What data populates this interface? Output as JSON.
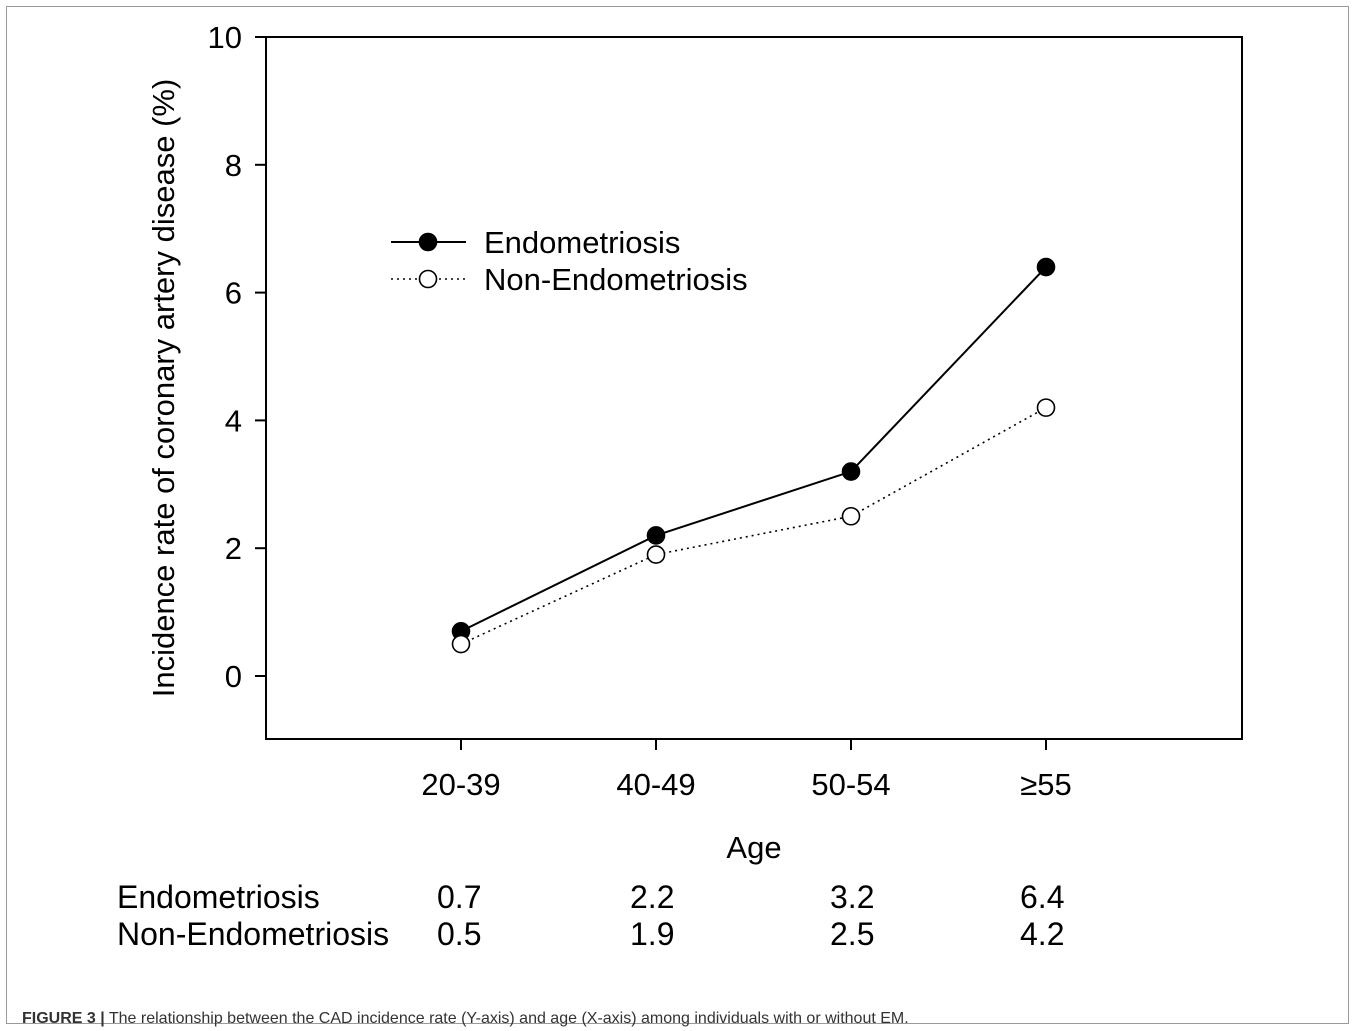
{
  "chart_data": {
    "type": "line",
    "categories": [
      "20-39",
      "40-49",
      "50-54",
      "≥55"
    ],
    "series": [
      {
        "name": "Endometriosis",
        "values": [
          0.7,
          2.2,
          3.2,
          6.4
        ],
        "marker": "filled-circle",
        "line": "solid",
        "color": "#000000"
      },
      {
        "name": "Non-Endometriosis",
        "values": [
          0.5,
          1.9,
          2.5,
          4.2
        ],
        "marker": "open-circle",
        "line": "dotted",
        "color": "#000000"
      }
    ],
    "xlabel": "Age",
    "ylabel": "Incidence rate of coronary artery disease (%)",
    "ylim": [
      -1,
      10
    ],
    "yticks": [
      0,
      2,
      4,
      6,
      8,
      10
    ],
    "grid": false,
    "legend": "upper-left-inside"
  },
  "table": {
    "rows": [
      {
        "label": "Endometriosis",
        "values": [
          "0.7",
          "2.2",
          "3.2",
          "6.4"
        ]
      },
      {
        "label": "Non-Endometriosis",
        "values": [
          "0.5",
          "1.9",
          "2.5",
          "4.2"
        ]
      }
    ]
  },
  "caption": {
    "label": "FIGURE 3 |",
    "text": " The relationship between the CAD incidence rate (Y-axis) and age (X-axis) among individuals with or without EM."
  }
}
